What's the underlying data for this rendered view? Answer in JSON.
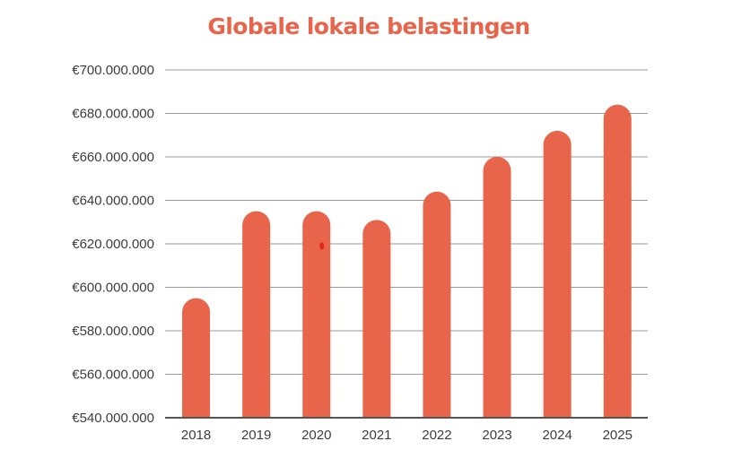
{
  "colors": {
    "bar": "#e8644a",
    "title": "#e8644a",
    "grid": "#9a9a9a",
    "text": "#3d3d3d",
    "marker": "#e8231c"
  },
  "chart_data": {
    "type": "bar",
    "title": "Globale lokale belastingen",
    "xlabel": "",
    "ylabel": "",
    "categories": [
      "2018",
      "2019",
      "2020",
      "2021",
      "2022",
      "2023",
      "2024",
      "2025"
    ],
    "values": [
      595000000,
      635000000,
      635000000,
      631000000,
      644000000,
      660000000,
      672000000,
      684000000
    ],
    "ylim": [
      540000000,
      700000000
    ],
    "yticks": [
      540000000,
      560000000,
      580000000,
      600000000,
      620000000,
      640000000,
      660000000,
      680000000,
      700000000
    ],
    "ytick_labels": [
      "€540.000.000",
      "€560.000.000",
      "€580.000.000",
      "€600.000.000",
      "€620.000.000",
      "€640.000.000",
      "€660.000.000",
      "€680.000.000",
      "€700.000.000"
    ],
    "grid": true,
    "legend": "none",
    "bar_style": "rounded-top",
    "marker": {
      "category": "2020",
      "y": 619000000
    }
  }
}
